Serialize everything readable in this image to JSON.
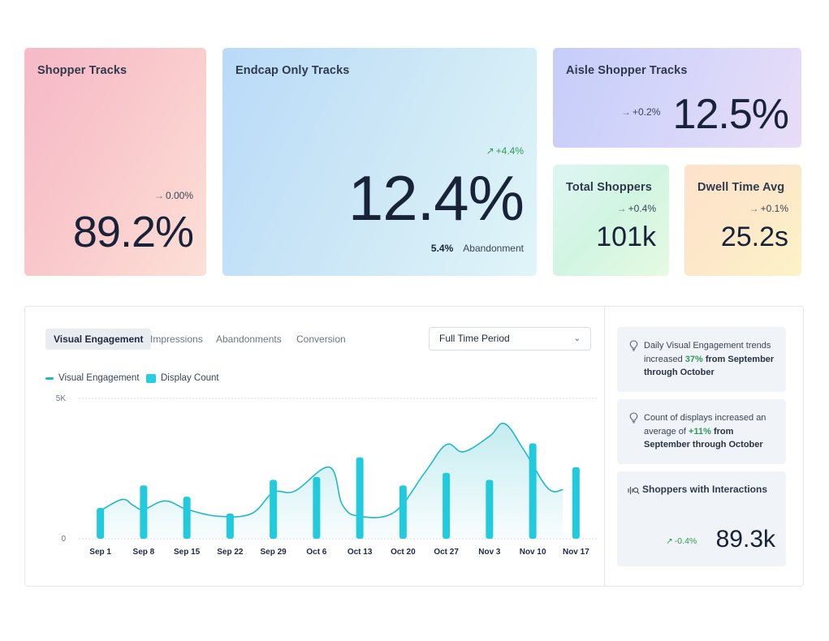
{
  "cards": {
    "shopper_tracks": {
      "title": "Shopper Tracks",
      "delta": "0.00%",
      "value": "89.2%"
    },
    "endcap_only_tracks": {
      "title": "Endcap Only Tracks",
      "delta": "+4.4%",
      "value": "12.4%",
      "sub_value": "5.4%",
      "sub_label": "Abandonment"
    },
    "aisle_shopper_tracks": {
      "title": "Aisle Shopper Tracks",
      "delta": "+0.2%",
      "value": "12.5%"
    },
    "total_shoppers": {
      "title": "Total Shoppers",
      "delta": "+0.4%",
      "value": "101k"
    },
    "dwell_time_avg": {
      "title": "Dwell Time Avg",
      "delta": "+0.1%",
      "value": "25.2s"
    }
  },
  "tabs": [
    {
      "label": "Visual Engagement",
      "active": true
    },
    {
      "label": "Impressions",
      "active": false
    },
    {
      "label": "Abandonments",
      "active": false
    },
    {
      "label": "Conversion",
      "active": false
    }
  ],
  "period_select": {
    "value": "Full Time Period"
  },
  "legend": {
    "line": "Visual Engagement",
    "bar": "Display Count"
  },
  "chart_data": {
    "type": "bar",
    "categories": [
      "Sep 1",
      "Sep 8",
      "Sep 15",
      "Sep 22",
      "Sep 29",
      "Oct 6",
      "Oct 13",
      "Oct 20",
      "Oct 27",
      "Nov 3",
      "Nov 10",
      "Nov 17"
    ],
    "y_tick_labels": [
      "5K",
      "0"
    ],
    "ylim": [
      0,
      5000
    ],
    "grid": true,
    "legend_position": "top-left",
    "series": [
      {
        "name": "Display Count",
        "kind": "bar",
        "color": "#22cadd",
        "values": [
          1100,
          1900,
          1500,
          900,
          2100,
          2200,
          2900,
          1900,
          2350,
          2100,
          3400,
          2550
        ]
      },
      {
        "name": "Visual Engagement",
        "kind": "area-line",
        "color": "#1fb8c8",
        "points": [
          [
            0,
            1000
          ],
          [
            0.5,
            1400
          ],
          [
            0.75,
            1200
          ],
          [
            1,
            1050
          ],
          [
            1.5,
            1350
          ],
          [
            2,
            1050
          ],
          [
            2.75,
            800
          ],
          [
            3.5,
            900
          ],
          [
            4,
            1650
          ],
          [
            4.5,
            1700
          ],
          [
            5.3,
            2550
          ],
          [
            5.6,
            1200
          ],
          [
            6,
            800
          ],
          [
            6.8,
            950
          ],
          [
            7.5,
            2350
          ],
          [
            8,
            3350
          ],
          [
            8.4,
            3100
          ],
          [
            9,
            3650
          ],
          [
            9.35,
            4100
          ],
          [
            9.8,
            3150
          ],
          [
            10.35,
            1800
          ],
          [
            10.7,
            1750
          ]
        ]
      }
    ]
  },
  "insights": [
    {
      "pre": "Daily Visual Engagement trends increased ",
      "highlight": "37%",
      "post": " from September through October"
    },
    {
      "pre": "Count of displays increased an average of ",
      "highlight": "+11%",
      "post": " from September through October"
    }
  ],
  "interactions": {
    "title": "Shoppers with Interactions",
    "delta": "-0.4%",
    "value": "89.3k"
  }
}
